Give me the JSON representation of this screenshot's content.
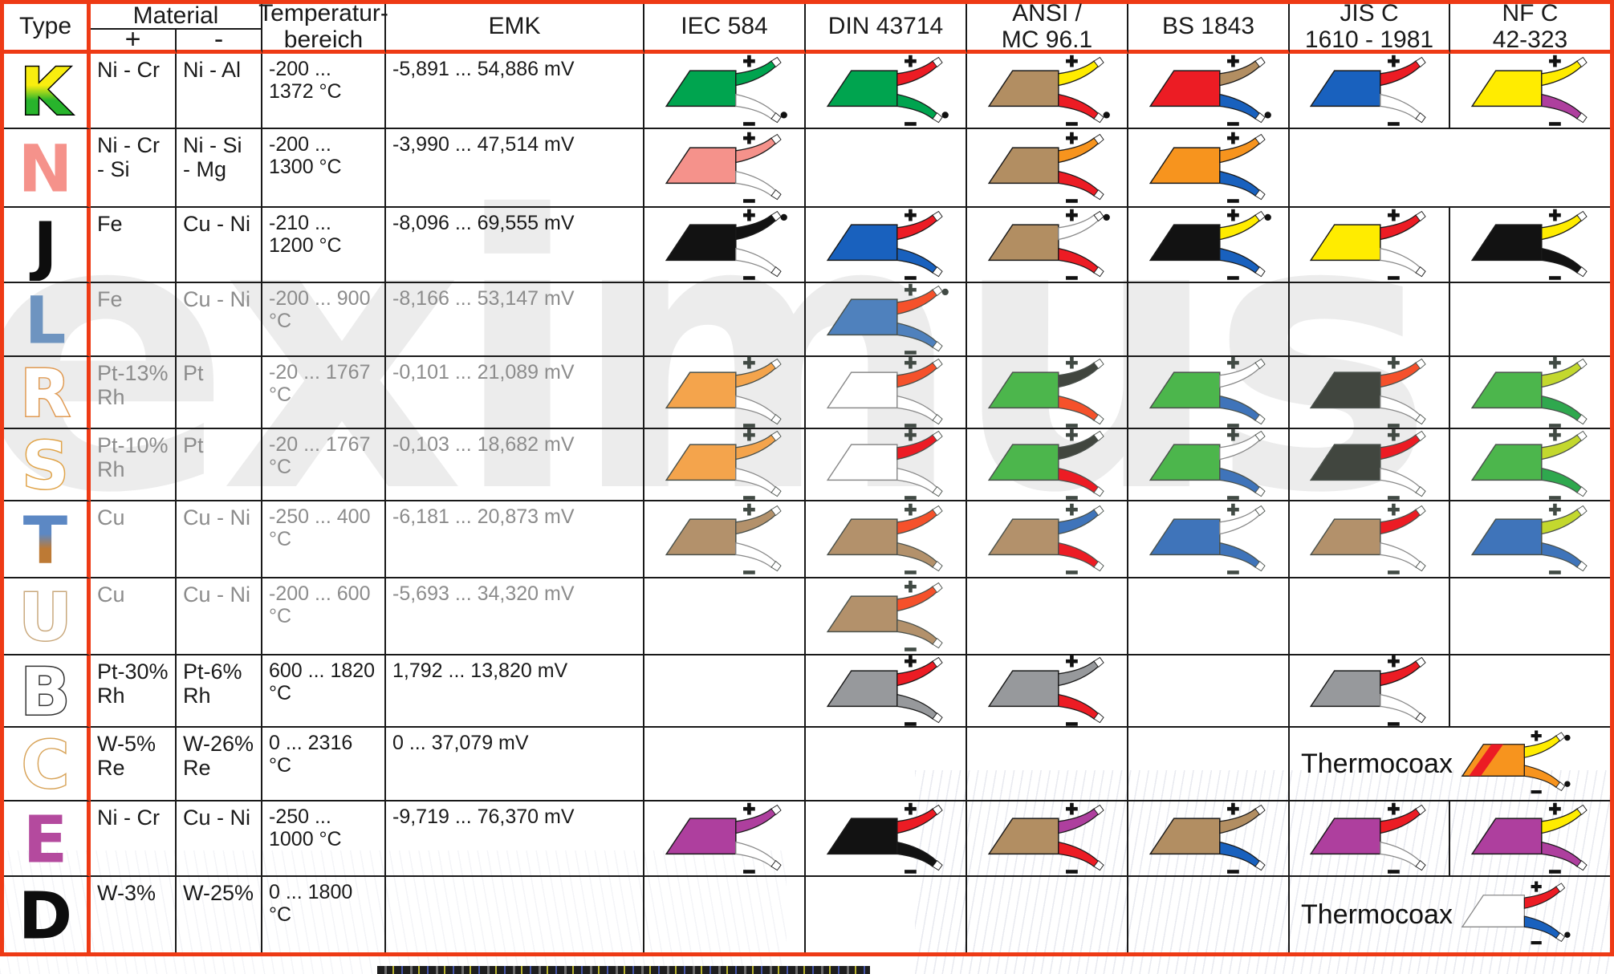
{
  "watermark_text": "eximus",
  "accent_red": "#ee3a15",
  "grid_black": "#191919",
  "palette": {
    "green": "#00a44f",
    "red": "#ec1c24",
    "brown": "#b28e62",
    "yellow": "#ffec00",
    "blue": "#1961be",
    "salmon": "#f5928b",
    "orange": "#f7941e",
    "purple": "#ae3f9e",
    "white": "#ffffff",
    "black": "#121212",
    "steelblue": "#4f81bd",
    "orangered": "#f5512b",
    "ltgreen": "#4cb64c",
    "dkgray": "#41463f",
    "chartreuse": "#c3d82e",
    "midgreen": "#2fa84e",
    "gray": "#97999c",
    "ltorange": "#f4a44c",
    "mutedblue": "#3f74ba",
    "mutedbrown": "#b3916b"
  },
  "header": {
    "type_label": "Type",
    "material_label": "Material",
    "plus_label": "+",
    "minus_label": "-",
    "temp_label": "Temperatur-\nbereich",
    "emk_label": "EMK",
    "standards": [
      "IEC 584",
      "DIN 43714",
      "ANSI /\nMC 96.1",
      "BS 1843",
      "JIS C\n1610 - 1981",
      "NF C\n42-323"
    ]
  },
  "thermocoax_label": "Thermocoax",
  "rows": [
    {
      "type": "K",
      "letter": {
        "gradient": [
          "#f9ee0f",
          "#28b42c"
        ],
        "stroke": "#000000"
      },
      "material_plus": "Ni - Cr",
      "material_minus": "Ni - Al",
      "temp_range": "-200 ... 1372 °C",
      "emk_range": "-5,891 ... 54,886 mV",
      "muted": false,
      "connectors": {
        "iec": {
          "body": "green",
          "plus": "green",
          "minus": "white",
          "dot": "bottom"
        },
        "din": {
          "body": "green",
          "plus": "red",
          "minus": "green",
          "dot": "bottom"
        },
        "ansi": {
          "body": "brown",
          "plus": "yellow",
          "minus": "red",
          "dot": "bottom"
        },
        "bs": {
          "body": "red",
          "plus": "brown",
          "minus": "blue",
          "dot": "bottom"
        },
        "jis": {
          "body": "blue",
          "plus": "red",
          "minus": "white"
        },
        "nf": {
          "body": "yellow",
          "plus": "yellow",
          "minus": "purple"
        }
      }
    },
    {
      "type": "N",
      "letter": {
        "fill": "#f5928b"
      },
      "material_plus": "Ni - Cr - Si",
      "material_minus": "Ni - Si - Mg",
      "temp_range": "-200 ... 1300 °C",
      "emk_range": "-3,990 ... 47,514 mV",
      "muted": false,
      "connectors": {
        "iec": {
          "body": "salmon",
          "plus": "salmon",
          "minus": "white"
        },
        "din": null,
        "ansi": {
          "body": "brown",
          "plus": "orange",
          "minus": "red"
        },
        "bs": {
          "body": "orange",
          "plus": "orange",
          "minus": "blue"
        }
      },
      "merged": {}
    },
    {
      "type": "J",
      "letter": {
        "fill": "#0d0d0d"
      },
      "material_plus": "Fe",
      "material_minus": "Cu - Ni",
      "temp_range": "-210 ... 1200 °C",
      "emk_range": "-8,096 ... 69,555 mV",
      "muted": false,
      "connectors": {
        "iec": {
          "body": "black",
          "plus": "black",
          "minus": "white",
          "dot": "top"
        },
        "din": {
          "body": "blue",
          "plus": "red",
          "minus": "blue"
        },
        "ansi": {
          "body": "brown",
          "plus": "white",
          "minus": "red",
          "dot": "top"
        },
        "bs": {
          "body": "black",
          "plus": "yellow",
          "minus": "blue",
          "dot": "top"
        },
        "jis": {
          "body": "yellow",
          "plus": "red",
          "minus": "white"
        },
        "nf": {
          "body": "black",
          "plus": "yellow",
          "minus": "black"
        }
      }
    },
    {
      "type": "L",
      "letter": {
        "fill": "#6e94c0"
      },
      "material_plus": "Fe",
      "material_minus": "Cu - Ni",
      "temp_range": "-200 ... 900 °C",
      "emk_range": "-8,166 ... 53,147 mV",
      "muted": true,
      "connectors": {
        "iec": null,
        "din": {
          "body": "steelblue",
          "plus": "orangered",
          "minus": "steelblue",
          "dot": "top"
        },
        "ansi": null,
        "bs": null,
        "jis": null,
        "nf": null
      }
    },
    {
      "type": "R",
      "letter": {
        "fill": "#ffffff",
        "stroke": "#e09a52"
      },
      "material_plus": "Pt-13% Rh",
      "material_minus": "Pt",
      "temp_range": "-20 ... 1767 °C",
      "emk_range": "-0,101 ... 21,089 mV",
      "muted": true,
      "connectors": {
        "iec": {
          "body": "ltorange",
          "plus": "ltorange",
          "minus": "white"
        },
        "din": {
          "body": "white",
          "plus": "orangered",
          "minus": "white"
        },
        "ansi": {
          "body": "ltgreen",
          "plus": "dkgray",
          "minus": "orangered"
        },
        "bs": {
          "body": "ltgreen",
          "plus": "white",
          "minus": "mutedblue"
        },
        "jis": {
          "body": "dkgray",
          "plus": "orangered",
          "minus": "white"
        },
        "nf": {
          "body": "ltgreen",
          "plus": "chartreuse",
          "minus": "midgreen"
        }
      }
    },
    {
      "type": "S",
      "letter": {
        "fill": "#ffffff",
        "stroke": "#e0a348"
      },
      "material_plus": "Pt-10% Rh",
      "material_minus": "Pt",
      "temp_range": "-20 ... 1767 °C",
      "emk_range": "-0,103 ... 18,682 mV",
      "muted": true,
      "connectors": {
        "iec": {
          "body": "ltorange",
          "plus": "ltorange",
          "minus": "white"
        },
        "din": {
          "body": "white",
          "plus": "red",
          "minus": "white"
        },
        "ansi": {
          "body": "ltgreen",
          "plus": "dkgray",
          "minus": "red"
        },
        "bs": {
          "body": "ltgreen",
          "plus": "white",
          "minus": "mutedblue"
        },
        "jis": {
          "body": "dkgray",
          "plus": "red",
          "minus": "white"
        },
        "nf": {
          "body": "ltgreen",
          "plus": "chartreuse",
          "minus": "midgreen"
        }
      }
    },
    {
      "type": "T",
      "letter": {
        "gradient": [
          "#5c88c4",
          "#bd7a35"
        ]
      },
      "material_plus": "Cu",
      "material_minus": "Cu - Ni",
      "temp_range": "-250 ... 400 °C",
      "emk_range": "-6,181 ... 20,873 mV",
      "muted": true,
      "connectors": {
        "iec": {
          "body": "mutedbrown",
          "plus": "mutedbrown",
          "minus": "white"
        },
        "din": {
          "body": "mutedbrown",
          "plus": "orangered",
          "minus": "mutedbrown"
        },
        "ansi": {
          "body": "mutedbrown",
          "plus": "mutedblue",
          "minus": "red"
        },
        "bs": {
          "body": "mutedblue",
          "plus": "white",
          "minus": "mutedblue"
        },
        "jis": {
          "body": "mutedbrown",
          "plus": "red",
          "minus": "white"
        },
        "nf": {
          "body": "mutedblue",
          "plus": "chartreuse",
          "minus": "mutedblue"
        }
      }
    },
    {
      "type": "U",
      "letter": {
        "fill": "#ffffff",
        "stroke": "#c9a87c"
      },
      "material_plus": "Cu",
      "material_minus": "Cu - Ni",
      "temp_range": "-200 ... 600 °C",
      "emk_range": "-5,693 ... 34,320 mV",
      "muted": true,
      "connectors": {
        "iec": null,
        "din": {
          "body": "mutedbrown",
          "plus": "orangered",
          "minus": "mutedbrown"
        },
        "ansi": null,
        "bs": null,
        "jis": null,
        "nf": null
      }
    },
    {
      "type": "B",
      "letter": {
        "fill": "#ffffff",
        "stroke": "#333333"
      },
      "material_plus": "Pt-30% Rh",
      "material_minus": "Pt-6% Rh",
      "temp_range": "600 ... 1820 °C",
      "emk_range": "1,792 ... 13,820 mV",
      "muted": false,
      "connectors": {
        "iec": null,
        "din": {
          "body": "gray",
          "plus": "red",
          "minus": "gray"
        },
        "ansi": {
          "body": "gray",
          "plus": "gray",
          "minus": "red"
        },
        "bs": null,
        "jis": {
          "body": "gray",
          "plus": "red",
          "minus": "white"
        },
        "nf": null
      }
    },
    {
      "type": "C",
      "letter": {
        "fill": "#ffffff",
        "stroke": "#d8a45a"
      },
      "material_plus": "W-5% Re",
      "material_minus": "W-26% Re",
      "temp_range": "0 ... 2316 °C",
      "emk_range": "0 ... 37,079 mV",
      "muted": false,
      "connectors": {
        "iec": null,
        "din": null,
        "ansi": null,
        "bs": null
      },
      "merged": {
        "label": "Thermocoax",
        "connector": {
          "body": "orange",
          "stripe": "red",
          "plus": "yellow",
          "minus": "orange",
          "dot": "both"
        }
      }
    },
    {
      "type": "E",
      "letter": {
        "fill": "#b44a9e"
      },
      "material_plus": "Ni - Cr",
      "material_minus": "Cu - Ni",
      "temp_range": "-250 ... 1000 °C",
      "emk_range": "-9,719 ... 76,370 mV",
      "muted": false,
      "connectors": {
        "iec": {
          "body": "purple",
          "plus": "purple",
          "minus": "white"
        },
        "din": {
          "body": "black",
          "plus": "red",
          "minus": "black"
        },
        "ansi": {
          "body": "brown",
          "plus": "purple",
          "minus": "red"
        },
        "bs": {
          "body": "brown",
          "plus": "brown",
          "minus": "blue"
        },
        "jis": {
          "body": "purple",
          "plus": "red",
          "minus": "white"
        },
        "nf": {
          "body": "purple",
          "plus": "yellow",
          "minus": "purple"
        }
      }
    },
    {
      "type": "D",
      "letter": {
        "fill": "#0d0d0d"
      },
      "material_plus": "W-3%",
      "material_minus": "W-25%",
      "temp_range": "0 ... 1800 °C",
      "emk_range": "",
      "muted": false,
      "connectors": {
        "iec": null,
        "din": null,
        "ansi": null,
        "bs": null
      },
      "merged": {
        "label": "Thermocoax",
        "connector": {
          "body": "white",
          "plus": "red",
          "minus": "blue",
          "dot": "bottom"
        }
      }
    }
  ]
}
